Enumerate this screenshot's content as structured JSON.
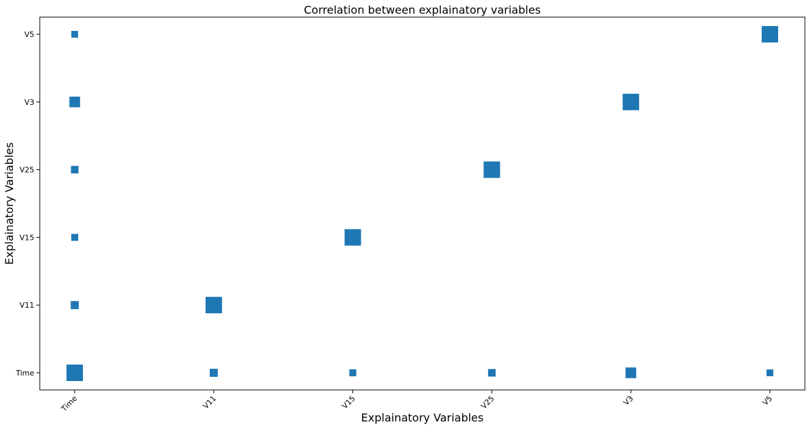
{
  "chart_data": {
    "type": "scatter",
    "title": "Correlation between explainatory variables",
    "xlabel": "Explainatory  Variables",
    "ylabel": "Explainatory Variables",
    "categories": [
      "Time",
      "V11",
      "V15",
      "V25",
      "V3",
      "V5"
    ],
    "grid": false,
    "marker": "square",
    "color": "#1f77b4",
    "points": [
      {
        "x": "Time",
        "y": "Time",
        "value": 1.0
      },
      {
        "x": "V11",
        "y": "Time",
        "value": 0.24
      },
      {
        "x": "V15",
        "y": "Time",
        "value": 0.18
      },
      {
        "x": "V25",
        "y": "Time",
        "value": 0.21
      },
      {
        "x": "V3",
        "y": "Time",
        "value": 0.42
      },
      {
        "x": "V5",
        "y": "Time",
        "value": 0.17
      },
      {
        "x": "Time",
        "y": "V11",
        "value": 0.24
      },
      {
        "x": "V11",
        "y": "V11",
        "value": 1.0
      },
      {
        "x": "Time",
        "y": "V15",
        "value": 0.18
      },
      {
        "x": "V15",
        "y": "V15",
        "value": 1.0
      },
      {
        "x": "Time",
        "y": "V25",
        "value": 0.21
      },
      {
        "x": "V25",
        "y": "V25",
        "value": 1.0
      },
      {
        "x": "Time",
        "y": "V3",
        "value": 0.42
      },
      {
        "x": "V3",
        "y": "V3",
        "value": 1.0
      },
      {
        "x": "Time",
        "y": "V5",
        "value": 0.17
      },
      {
        "x": "V5",
        "y": "V5",
        "value": 1.0
      }
    ]
  }
}
